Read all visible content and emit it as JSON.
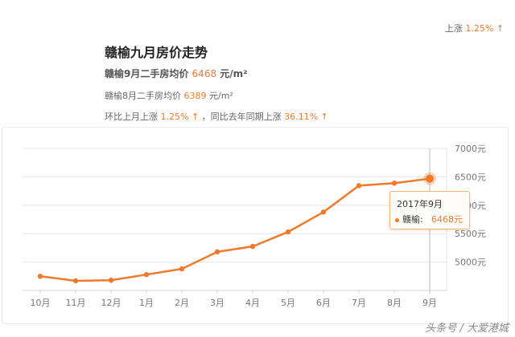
{
  "header": {
    "top_right_prefix": "上涨",
    "top_right_value": "1.25%",
    "top_right_arrow": "↑",
    "title": "赣榆九月房价走势",
    "line1_prefix": "赣榆9月二手房均价",
    "line1_value": "6468",
    "line1_unit": "元/m²",
    "line2_prefix": "赣榆8月二手房均价",
    "line2_value": "6389",
    "line2_unit": "元/m²",
    "line3_prefix": "环比上月上涨",
    "line3_value1": "1.25%",
    "line3_arrow1": "↑",
    "line3_mid": "，同比去年同期上涨",
    "line3_value2": "36.11%",
    "line3_arrow2": "↑"
  },
  "tooltip": {
    "date": "2017年9月",
    "series": "赣榆:",
    "value": "6468元"
  },
  "watermark": "头条号 / 大爱港城",
  "colors": {
    "accent": "#f07a2b",
    "grid": "#e6e6e6",
    "axis_text": "#777777"
  },
  "chart_data": {
    "type": "line",
    "title": "赣榆九月房价走势",
    "xlabel": "",
    "ylabel": "元/m²",
    "categories": [
      "10月",
      "11月",
      "12月",
      "1月",
      "2月",
      "3月",
      "4月",
      "5月",
      "6月",
      "7月",
      "8月",
      "9月"
    ],
    "series": [
      {
        "name": "赣榆",
        "values": [
          4750,
          4670,
          4680,
          4780,
          4880,
          5180,
          5275,
          5530,
          5880,
          6345,
          6389,
          6468
        ]
      }
    ],
    "y_ticks": [
      "5000元",
      "5500元",
      "6000元",
      "6500元",
      "7000元"
    ],
    "ylim": [
      4500,
      7000
    ],
    "grid": true,
    "y_axis_position": "right",
    "highlighted_point": {
      "category": "9月",
      "value": 6468
    }
  }
}
